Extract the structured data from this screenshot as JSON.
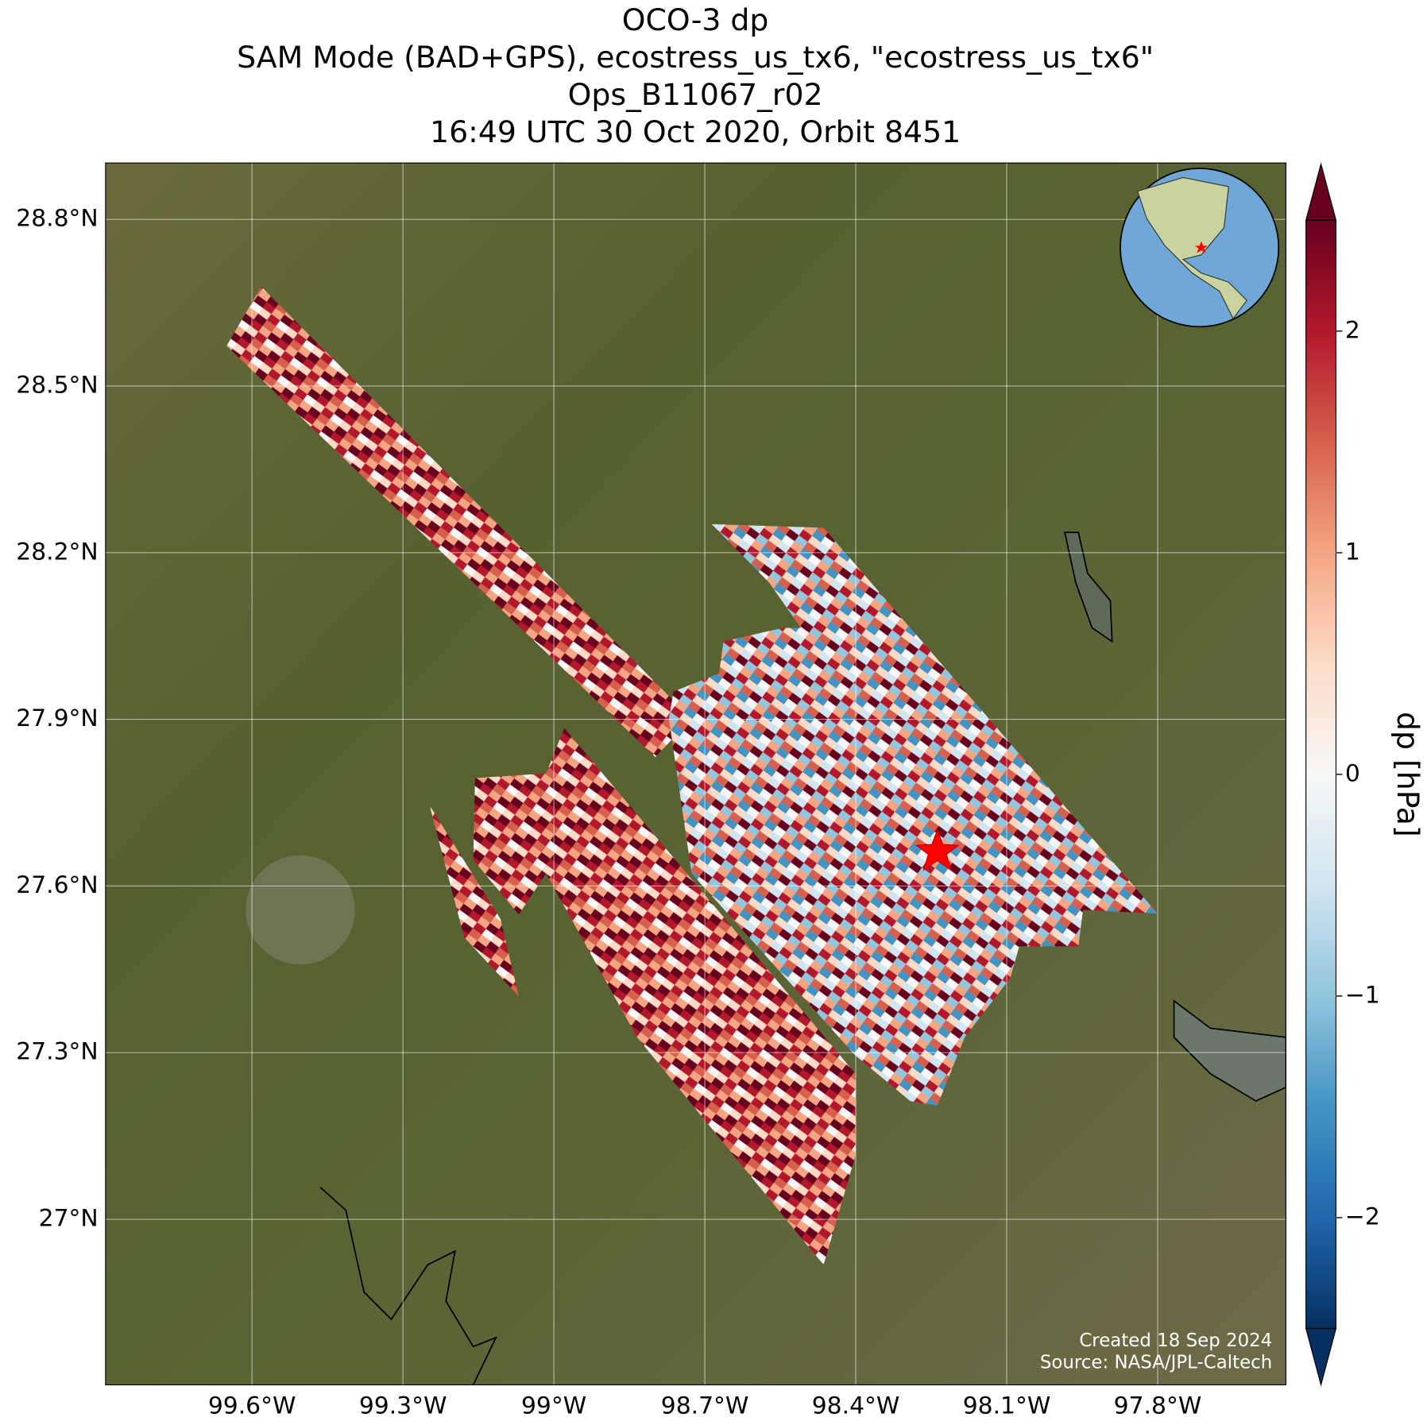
{
  "title": [
    "OCO-3 dp",
    "SAM Mode (BAD+GPS), ecostress_us_tx6, \"ecostress_us_tx6\"",
    "Ops_B11067_r02",
    "16:49 UTC 30 Oct 2020, Orbit 8451"
  ],
  "map": {
    "lonlim": [
      -99.891,
      -97.545
    ],
    "latlim": [
      26.702,
      28.9015
    ],
    "lonticks": [
      {
        "value": -99.6,
        "label": "99.6°W"
      },
      {
        "value": -99.3,
        "label": "99.3°W"
      },
      {
        "value": -99.0,
        "label": "99°W"
      },
      {
        "value": -98.7,
        "label": "98.7°W"
      },
      {
        "value": -98.4,
        "label": "98.4°W"
      },
      {
        "value": -98.1,
        "label": "98.1°W"
      },
      {
        "value": -97.8,
        "label": "97.8°W"
      }
    ],
    "latticks": [
      {
        "value": 28.8,
        "label": "28.8°N"
      },
      {
        "value": 28.5,
        "label": "28.5°N"
      },
      {
        "value": 28.2,
        "label": "28.2°N"
      },
      {
        "value": 27.9,
        "label": "27.9°N"
      },
      {
        "value": 27.6,
        "label": "27.6°N"
      },
      {
        "value": 27.3,
        "label": "27.3°N"
      },
      {
        "value": 27.0,
        "label": "27°N"
      }
    ],
    "credits": [
      "Created 18 Sep 2024",
      "Source: NASA/JPL-Caltech"
    ]
  },
  "colorbar": {
    "label": "dp [hPa]",
    "lim": [
      -2.5,
      2.5
    ],
    "ticks": [
      {
        "value": 2,
        "label": "2"
      },
      {
        "value": 1,
        "label": "1"
      },
      {
        "value": 0,
        "label": "0"
      },
      {
        "value": -1,
        "label": "−1"
      },
      {
        "value": -2,
        "label": "−2"
      }
    ]
  }
}
